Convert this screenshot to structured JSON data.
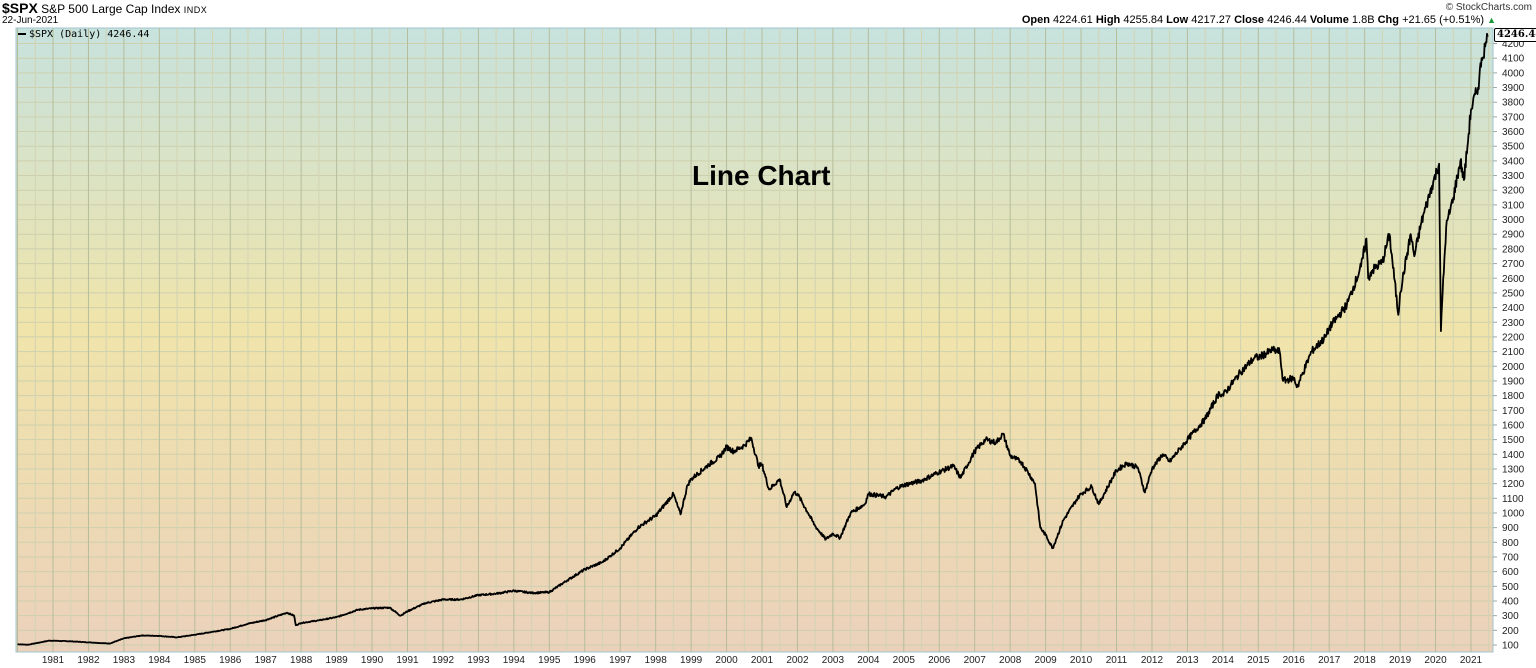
{
  "header": {
    "symbol": "$SPX",
    "name": "S&P 500 Large Cap Index",
    "exchange": "INDX",
    "date": "22-Jun-2021",
    "copyright": "© StockCharts.com",
    "ohlc": {
      "open_label": "Open",
      "open": "4224.61",
      "high_label": "High",
      "high": "4255.84",
      "low_label": "Low",
      "low": "4217.27",
      "close_label": "Close",
      "close": "4246.44",
      "volume_label": "Volume",
      "volume": "1.8B",
      "chg_label": "Chg",
      "chg": "+21.65 (+0.51%)",
      "chg_icon": "triangle-up-icon"
    }
  },
  "legend": {
    "label": "$SPX (Daily) 4246.44"
  },
  "annotation": "Line Chart",
  "last_value_tag": "4246.44",
  "colors": {
    "line": "#000000",
    "bg_top": "#c9e3dc",
    "bg_mid": "#f0e4ab",
    "bg_bottom": "#ebd2b9",
    "grid_major": "#b4bc9a",
    "grid_minor": "#cfd2b0",
    "axis": "#9fc4cf"
  },
  "chart_data": {
    "type": "line",
    "title": "$SPX S&P 500 Large Cap Index",
    "subtitle": "Line Chart",
    "xlabel": "",
    "ylabel": "",
    "series": [
      {
        "name": "$SPX (Daily)",
        "x": [
          1980.0,
          1980.3,
          1980.9,
          1981.5,
          1982.0,
          1982.6,
          1983.0,
          1983.5,
          1984.0,
          1984.5,
          1985.0,
          1985.5,
          1986.0,
          1986.5,
          1987.0,
          1987.6,
          1987.8,
          1987.85,
          1988.0,
          1988.5,
          1989.0,
          1989.6,
          1990.0,
          1990.5,
          1990.8,
          1991.0,
          1991.5,
          1992.0,
          1992.5,
          1993.0,
          1993.5,
          1994.0,
          1994.5,
          1995.0,
          1995.5,
          1996.0,
          1996.5,
          1997.0,
          1997.5,
          1997.8,
          1998.0,
          1998.5,
          1998.7,
          1998.9,
          1999.0,
          1999.5,
          1999.8,
          2000.0,
          2000.2,
          2000.5,
          2000.7,
          2000.9,
          2001.0,
          2001.2,
          2001.5,
          2001.7,
          2001.9,
          2002.0,
          2002.3,
          2002.5,
          2002.8,
          2003.0,
          2003.2,
          2003.5,
          2003.9,
          2004.0,
          2004.5,
          2004.8,
          2005.0,
          2005.5,
          2006.0,
          2006.4,
          2006.6,
          2007.0,
          2007.3,
          2007.6,
          2007.8,
          2008.0,
          2008.3,
          2008.5,
          2008.7,
          2008.85,
          2009.0,
          2009.2,
          2009.5,
          2009.9,
          2010.0,
          2010.3,
          2010.5,
          2010.8,
          2011.0,
          2011.3,
          2011.6,
          2011.8,
          2012.0,
          2012.3,
          2012.5,
          2012.8,
          2013.0,
          2013.5,
          2013.9,
          2014.0,
          2014.5,
          2014.9,
          2015.0,
          2015.4,
          2015.6,
          2015.7,
          2016.0,
          2016.1,
          2016.5,
          2016.9,
          2017.0,
          2017.5,
          2017.9,
          2018.05,
          2018.1,
          2018.2,
          2018.5,
          2018.7,
          2018.95,
          2019.0,
          2019.3,
          2019.4,
          2019.6,
          2019.9,
          2020.1,
          2020.15,
          2020.2,
          2020.3,
          2020.5,
          2020.7,
          2020.8,
          2020.9,
          2021.0,
          2021.2,
          2021.3,
          2021.4,
          2021.47
        ],
        "values": [
          105,
          102,
          130,
          125,
          118,
          110,
          145,
          165,
          162,
          152,
          170,
          190,
          210,
          245,
          270,
          320,
          300,
          235,
          250,
          268,
          290,
          340,
          350,
          355,
          300,
          330,
          385,
          410,
          410,
          440,
          450,
          470,
          455,
          460,
          540,
          615,
          665,
          760,
          900,
          950,
          980,
          1130,
          990,
          1190,
          1230,
          1330,
          1380,
          1450,
          1420,
          1460,
          1510,
          1320,
          1330,
          1160,
          1230,
          1040,
          1140,
          1130,
          1000,
          910,
          820,
          860,
          830,
          1000,
          1060,
          1130,
          1110,
          1170,
          1190,
          1220,
          1280,
          1320,
          1240,
          1420,
          1500,
          1480,
          1540,
          1390,
          1350,
          1280,
          1200,
          900,
          850,
          760,
          950,
          1100,
          1130,
          1180,
          1060,
          1200,
          1290,
          1340,
          1310,
          1140,
          1300,
          1400,
          1350,
          1440,
          1500,
          1640,
          1820,
          1800,
          1960,
          2060,
          2060,
          2110,
          2100,
          1900,
          1920,
          1860,
          2100,
          2200,
          2260,
          2420,
          2680,
          2870,
          2600,
          2650,
          2710,
          2900,
          2350,
          2500,
          2900,
          2750,
          2980,
          3230,
          3380,
          2240,
          2500,
          2950,
          3150,
          3400,
          3270,
          3500,
          3750,
          3900,
          4100,
          4180,
          4246.44
        ]
      }
    ],
    "x_ticks": [
      "1981",
      "1982",
      "1983",
      "1984",
      "1985",
      "1986",
      "1987",
      "1988",
      "1989",
      "1990",
      "1991",
      "1992",
      "1993",
      "1994",
      "1995",
      "1996",
      "1997",
      "1998",
      "1999",
      "2000",
      "2001",
      "2002",
      "2003",
      "2004",
      "2005",
      "2006",
      "2007",
      "2008",
      "2009",
      "2010",
      "2011",
      "2012",
      "2013",
      "2014",
      "2015",
      "2016",
      "2017",
      "2018",
      "2019",
      "2020",
      "2021"
    ],
    "y_ticks": [
      100,
      200,
      300,
      400,
      500,
      600,
      700,
      800,
      900,
      1000,
      1100,
      1200,
      1300,
      1400,
      1500,
      1600,
      1700,
      1800,
      1900,
      2000,
      2100,
      2200,
      2300,
      2400,
      2500,
      2600,
      2700,
      2800,
      2900,
      3000,
      3100,
      3200,
      3300,
      3400,
      3500,
      3600,
      3700,
      3800,
      3900,
      4000,
      4100,
      4200
    ],
    "ylim": [
      60,
      4300
    ],
    "xlim": [
      1980.0,
      1981.0
    ],
    "grid": true,
    "legend_position": "top-left",
    "scale": "linear"
  }
}
